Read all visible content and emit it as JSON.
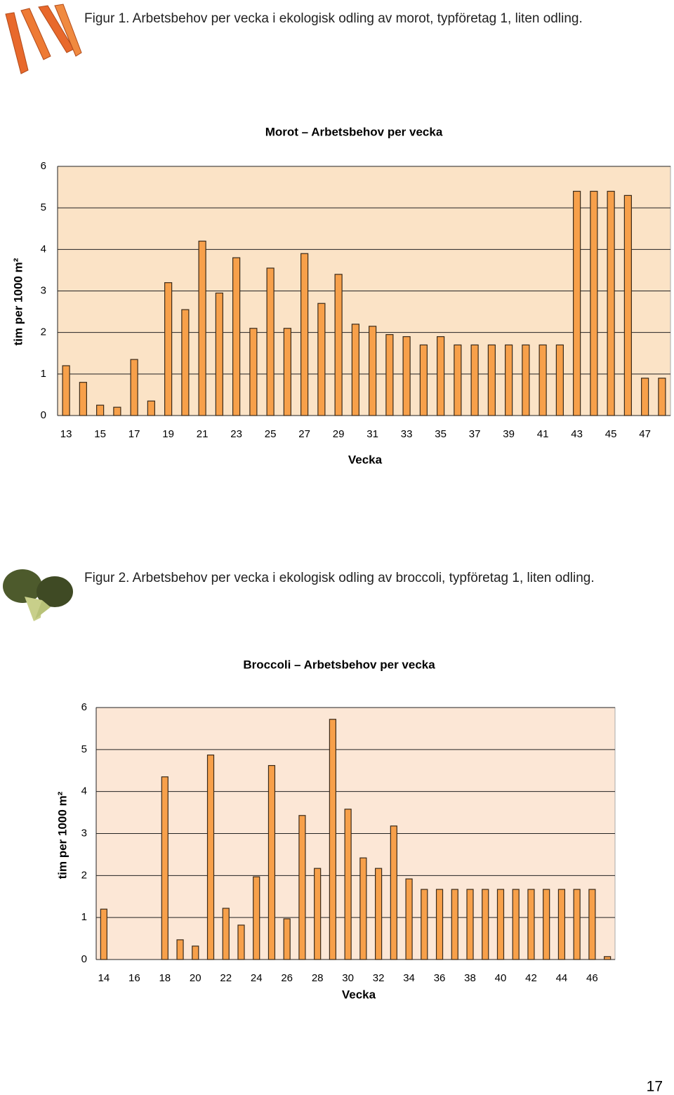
{
  "captions": [
    "Figur 1. Arbetsbehov per vecka i ekologisk odling av morot, typföretag 1, liten odling.",
    "Figur 2. Arbetsbehov per vecka i ekologisk odling av broccoli, typföretag 1, liten odling."
  ],
  "page_number": "17",
  "chart_data": [
    {
      "type": "bar",
      "title": "Morot – Arbetsbehov per vecka",
      "x_label": "Vecka",
      "y_label": "tim per 1000 m²",
      "categories": [
        "13",
        null,
        "15",
        null,
        "17",
        null,
        "19",
        null,
        "21",
        null,
        "23",
        null,
        "25",
        null,
        "27",
        null,
        "29",
        null,
        "31",
        null,
        "33",
        null,
        "35",
        null,
        "37",
        null,
        "39",
        null,
        "41",
        null,
        "43",
        null,
        "45",
        null,
        "47",
        null
      ],
      "values": [
        1.2,
        0.8,
        0.25,
        0.2,
        1.35,
        0.35,
        3.2,
        2.55,
        4.2,
        2.95,
        3.8,
        2.1,
        3.55,
        2.1,
        3.9,
        2.7,
        3.4,
        2.2,
        2.15,
        1.95,
        1.9,
        1.7,
        1.9,
        1.7,
        1.7,
        1.7,
        1.7,
        1.7,
        1.7,
        1.7,
        5.4,
        5.4,
        5.4,
        5.3,
        0.9,
        0.9
      ],
      "color": "#f7a04a",
      "ylim": [
        0,
        6
      ],
      "yticks": [
        0,
        1,
        2,
        3,
        4,
        5,
        6
      ],
      "grid": true,
      "background": "#fbe3c6"
    },
    {
      "type": "bar",
      "title": "Broccoli – Arbetsbehov per vecka",
      "x_label": "Vecka",
      "y_label": "tim per 1000 m²",
      "categories": [
        "14",
        null,
        "16",
        null,
        "18",
        null,
        "20",
        null,
        "22",
        null,
        "24",
        null,
        "26",
        null,
        "28",
        null,
        "30",
        null,
        "32",
        null,
        "34",
        null,
        "36",
        null,
        "38",
        null,
        "40",
        null,
        "42",
        null,
        "44",
        null,
        "46",
        null
      ],
      "values": [
        1.2,
        0,
        0,
        0,
        4.35,
        0.47,
        0.32,
        4.87,
        1.22,
        0.82,
        1.97,
        4.62,
        0.97,
        3.43,
        2.17,
        5.72,
        3.58,
        2.42,
        2.17,
        3.18,
        1.92,
        1.67,
        1.67,
        1.67,
        1.67,
        1.67,
        1.67,
        1.67,
        1.67,
        1.67,
        1.67,
        1.67,
        1.67,
        0.07
      ],
      "color": "#f7a04a",
      "ylim": [
        0,
        6
      ],
      "yticks": [
        0,
        1,
        2,
        3,
        4,
        5,
        6
      ],
      "grid": true,
      "background": "#fce7d6"
    }
  ]
}
